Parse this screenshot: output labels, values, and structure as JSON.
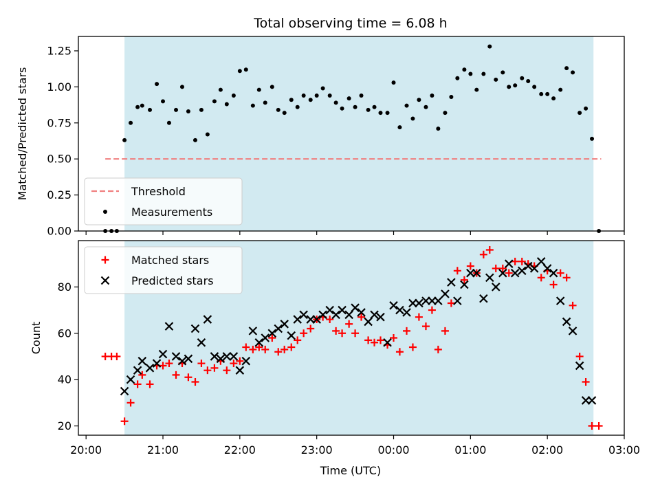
{
  "chart_data": {
    "title": "Total observing time = 6.08 h",
    "xlabel": "Time (UTC)",
    "x_unit": "hours past 00:00 UTC (negative = previous evening)",
    "x_ticks": [
      -4,
      -3,
      -2,
      -1,
      0,
      1,
      2,
      3
    ],
    "x_tick_labels": [
      "20:00",
      "21:00",
      "22:00",
      "23:00",
      "00:00",
      "01:00",
      "02:00",
      "03:00"
    ],
    "xlim": [
      -4.1,
      3.0
    ],
    "shaded_span": [
      -3.5,
      2.6
    ],
    "shaded_color": "#add8e6",
    "panels": [
      {
        "type": "scatter",
        "ylabel": "Matched/Predicted stars",
        "ylim": [
          0,
          1.35
        ],
        "yticks": [
          0.0,
          0.25,
          0.5,
          0.75,
          1.0,
          1.25
        ],
        "ytick_labels": [
          "0.00",
          "0.25",
          "0.50",
          "0.75",
          "1.00",
          "1.25"
        ],
        "legend_position": "lower-left",
        "threshold": {
          "name": "Threshold",
          "value": 0.5,
          "x_range": [
            -3.75,
            2.7
          ],
          "color": "#f08080",
          "style": "dashed"
        },
        "series": [
          {
            "name": "Measurements",
            "color": "#000000",
            "marker": "dot",
            "x": [
              -3.75,
              -3.67,
              -3.6,
              -3.5,
              -3.42,
              -3.33,
              -3.27,
              -3.17,
              -3.08,
              -3.0,
              -2.92,
              -2.83,
              -2.75,
              -2.67,
              -2.58,
              -2.5,
              -2.42,
              -2.33,
              -2.25,
              -2.17,
              -2.08,
              -2.0,
              -1.92,
              -1.83,
              -1.75,
              -1.67,
              -1.58,
              -1.5,
              -1.42,
              -1.33,
              -1.25,
              -1.17,
              -1.08,
              -1.0,
              -0.92,
              -0.83,
              -0.75,
              -0.67,
              -0.58,
              -0.5,
              -0.42,
              -0.33,
              -0.25,
              -0.17,
              -0.08,
              0.0,
              0.08,
              0.17,
              0.25,
              0.33,
              0.42,
              0.5,
              0.58,
              0.67,
              0.75,
              0.83,
              0.92,
              1.0,
              1.08,
              1.17,
              1.25,
              1.33,
              1.42,
              1.5,
              1.58,
              1.67,
              1.75,
              1.83,
              1.92,
              2.0,
              2.08,
              2.17,
              2.25,
              2.33,
              2.42,
              2.5,
              2.58,
              2.67
            ],
            "y": [
              0.0,
              0.0,
              0.0,
              0.63,
              0.75,
              0.86,
              0.87,
              0.84,
              1.02,
              0.9,
              0.75,
              0.84,
              1.0,
              0.83,
              0.63,
              0.84,
              0.67,
              0.9,
              0.98,
              0.88,
              0.94,
              1.11,
              1.12,
              0.87,
              0.98,
              0.89,
              1.0,
              0.84,
              0.82,
              0.91,
              0.86,
              0.94,
              0.91,
              0.94,
              0.99,
              0.94,
              0.89,
              0.85,
              0.92,
              0.86,
              0.94,
              0.84,
              0.86,
              0.82,
              0.82,
              1.03,
              0.72,
              0.87,
              0.78,
              0.91,
              0.86,
              0.94,
              0.71,
              0.82,
              0.93,
              1.06,
              1.12,
              1.09,
              0.98,
              1.09,
              1.28,
              1.05,
              1.1,
              1.0,
              1.01,
              1.06,
              1.04,
              1.0,
              0.95,
              0.95,
              0.92,
              0.98,
              1.13,
              1.1,
              0.82,
              0.85,
              0.64,
              0.0
            ]
          }
        ]
      },
      {
        "type": "scatter",
        "ylabel": "Count",
        "ylim": [
          16,
          100
        ],
        "yticks": [
          20,
          40,
          60,
          80
        ],
        "ytick_labels": [
          "20",
          "40",
          "60",
          "80"
        ],
        "legend_position": "upper-left",
        "series": [
          {
            "name": "Matched stars",
            "color": "#ff0000",
            "marker": "plus",
            "x": [
              -3.75,
              -3.67,
              -3.6,
              -3.5,
              -3.42,
              -3.33,
              -3.27,
              -3.17,
              -3.08,
              -3.0,
              -2.92,
              -2.83,
              -2.75,
              -2.67,
              -2.58,
              -2.5,
              -2.42,
              -2.33,
              -2.25,
              -2.17,
              -2.08,
              -2.0,
              -1.92,
              -1.83,
              -1.75,
              -1.67,
              -1.58,
              -1.5,
              -1.42,
              -1.33,
              -1.25,
              -1.17,
              -1.08,
              -1.0,
              -0.92,
              -0.83,
              -0.75,
              -0.67,
              -0.58,
              -0.5,
              -0.42,
              -0.33,
              -0.25,
              -0.17,
              -0.08,
              0.0,
              0.08,
              0.17,
              0.25,
              0.33,
              0.42,
              0.5,
              0.58,
              0.67,
              0.75,
              0.83,
              0.92,
              1.0,
              1.08,
              1.17,
              1.25,
              1.33,
              1.42,
              1.5,
              1.58,
              1.67,
              1.75,
              1.83,
              1.92,
              2.0,
              2.08,
              2.17,
              2.25,
              2.33,
              2.42,
              2.5,
              2.58,
              2.67
            ],
            "y": [
              50,
              50,
              50,
              22,
              30,
              38,
              42,
              38,
              46,
              46,
              47,
              42,
              47,
              41,
              39,
              47,
              44,
              45,
              48,
              44,
              47,
              48,
              54,
              53,
              54,
              53,
              58,
              52,
              53,
              54,
              57,
              60,
              62,
              66,
              67,
              66,
              61,
              60,
              64,
              60,
              67,
              57,
              56,
              57,
              55,
              58,
              52,
              61,
              54,
              67,
              63,
              70,
              53,
              61,
              73,
              87,
              83,
              89,
              86,
              94,
              96,
              88,
              88,
              86,
              91,
              91,
              90,
              89,
              84,
              87,
              81,
              86,
              84,
              72,
              50,
              39,
              20,
              20
            ]
          },
          {
            "name": "Predicted stars",
            "color": "#000000",
            "marker": "x",
            "x": [
              -3.5,
              -3.42,
              -3.33,
              -3.27,
              -3.17,
              -3.08,
              -3.0,
              -2.92,
              -2.83,
              -2.75,
              -2.67,
              -2.58,
              -2.5,
              -2.42,
              -2.33,
              -2.25,
              -2.17,
              -2.08,
              -2.0,
              -1.92,
              -1.83,
              -1.75,
              -1.67,
              -1.58,
              -1.5,
              -1.42,
              -1.33,
              -1.25,
              -1.17,
              -1.08,
              -1.0,
              -0.92,
              -0.83,
              -0.75,
              -0.67,
              -0.58,
              -0.5,
              -0.42,
              -0.33,
              -0.25,
              -0.17,
              -0.08,
              0.0,
              0.08,
              0.17,
              0.25,
              0.33,
              0.42,
              0.5,
              0.58,
              0.67,
              0.75,
              0.83,
              0.92,
              1.0,
              1.08,
              1.17,
              1.25,
              1.33,
              1.42,
              1.5,
              1.58,
              1.67,
              1.75,
              1.83,
              1.92,
              2.0,
              2.08,
              2.17,
              2.25,
              2.33,
              2.42,
              2.5,
              2.58
            ],
            "y": [
              35,
              40,
              44,
              48,
              45,
              47,
              51,
              63,
              50,
              48,
              49,
              62,
              56,
              66,
              50,
              49,
              50,
              50,
              44,
              48,
              61,
              56,
              58,
              60,
              62,
              64,
              59,
              66,
              68,
              66,
              66,
              68,
              70,
              68,
              70,
              68,
              71,
              69,
              65,
              68,
              67,
              56,
              72,
              70,
              69,
              73,
              73,
              74,
              74,
              74,
              77,
              82,
              74,
              81,
              86,
              86,
              75,
              84,
              80,
              86,
              90,
              86,
              87,
              89,
              88,
              91,
              88,
              86,
              74,
              65,
              61,
              46,
              31,
              31
            ]
          }
        ]
      }
    ]
  }
}
